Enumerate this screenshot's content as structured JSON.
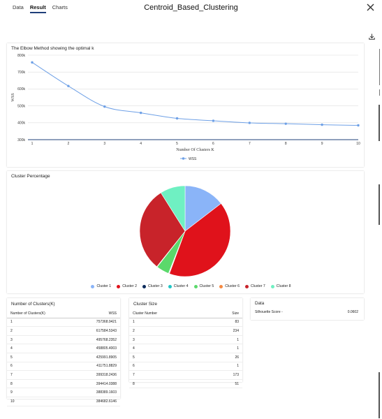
{
  "header": {
    "tabs": [
      "Data",
      "Result",
      "Charts"
    ],
    "active_tab": 1,
    "title": "Centroid_Based_Clustering"
  },
  "elbow": {
    "title": "The Elbow Method showing the optimal k",
    "legend": "WSS",
    "color": "#6ea0e6"
  },
  "pie": {
    "title": "Cluster Percentage"
  },
  "number_table": {
    "title": "Number of Clusters(K)",
    "headers": [
      "Number of Clusters(K)",
      "WSS"
    ],
    "rows": [
      [
        "1",
        "757368.9421"
      ],
      [
        "2",
        "617584.5343"
      ],
      [
        "3",
        "495768.2352"
      ],
      [
        "4",
        "458805.4003"
      ],
      [
        "5",
        "425991.8905"
      ],
      [
        "6",
        "411751.8829"
      ],
      [
        "7",
        "399318.2436"
      ],
      [
        "8",
        "394414.0388"
      ],
      [
        "9",
        "388389.1603"
      ],
      [
        "10",
        "384682.6146"
      ]
    ]
  },
  "size_table": {
    "title": "Cluster Size",
    "headers": [
      "Cluster Number",
      "Size"
    ],
    "rows": [
      [
        "1",
        "83"
      ],
      [
        "2",
        "234"
      ],
      [
        "3",
        "1"
      ],
      [
        "4",
        "1"
      ],
      [
        "5",
        "26"
      ],
      [
        "6",
        "1"
      ],
      [
        "7",
        "173"
      ],
      [
        "8",
        "51"
      ]
    ]
  },
  "data_card": {
    "title": "Data",
    "label": "Silhouette Score -",
    "value": "0.0602"
  },
  "chart_data": [
    {
      "type": "line",
      "title": "The Elbow Method showing the optimal k",
      "xlabel": "Number Of Clusters K",
      "ylabel": "WSS",
      "x": [
        1,
        2,
        3,
        4,
        5,
        6,
        7,
        8,
        9,
        10
      ],
      "series": [
        {
          "name": "WSS",
          "values": [
            757368.9421,
            617584.5343,
            495768.2352,
            458805.4003,
            425991.8905,
            411751.8829,
            399318.2436,
            394414.0388,
            388389.1603,
            384682.6146
          ]
        }
      ],
      "ylim": [
        300000,
        800000
      ],
      "yticks": [
        "300k",
        "400k",
        "500k",
        "600k",
        "700k",
        "800k"
      ],
      "xticks": [
        "1",
        "2",
        "3",
        "4",
        "5",
        "6",
        "7",
        "8",
        "9",
        "10"
      ],
      "grid": true,
      "legend": "bottom"
    },
    {
      "type": "pie",
      "title": "Cluster Percentage",
      "legend": "bottom",
      "slices": [
        {
          "name": "Cluster 1",
          "value": 83,
          "color": "#8ab4f8"
        },
        {
          "name": "Cluster 2",
          "value": 234,
          "color": "#e0121b"
        },
        {
          "name": "Cluster 3",
          "value": 1,
          "color": "#0b2a5b"
        },
        {
          "name": "Cluster 4",
          "value": 1,
          "color": "#20c5c5"
        },
        {
          "name": "Cluster 5",
          "value": 26,
          "color": "#5bd96b"
        },
        {
          "name": "Cluster 6",
          "value": 1,
          "color": "#f58a42"
        },
        {
          "name": "Cluster 7",
          "value": 173,
          "color": "#c8232a"
        },
        {
          "name": "Cluster 8",
          "value": 51,
          "color": "#6ff0c2"
        }
      ]
    }
  ]
}
